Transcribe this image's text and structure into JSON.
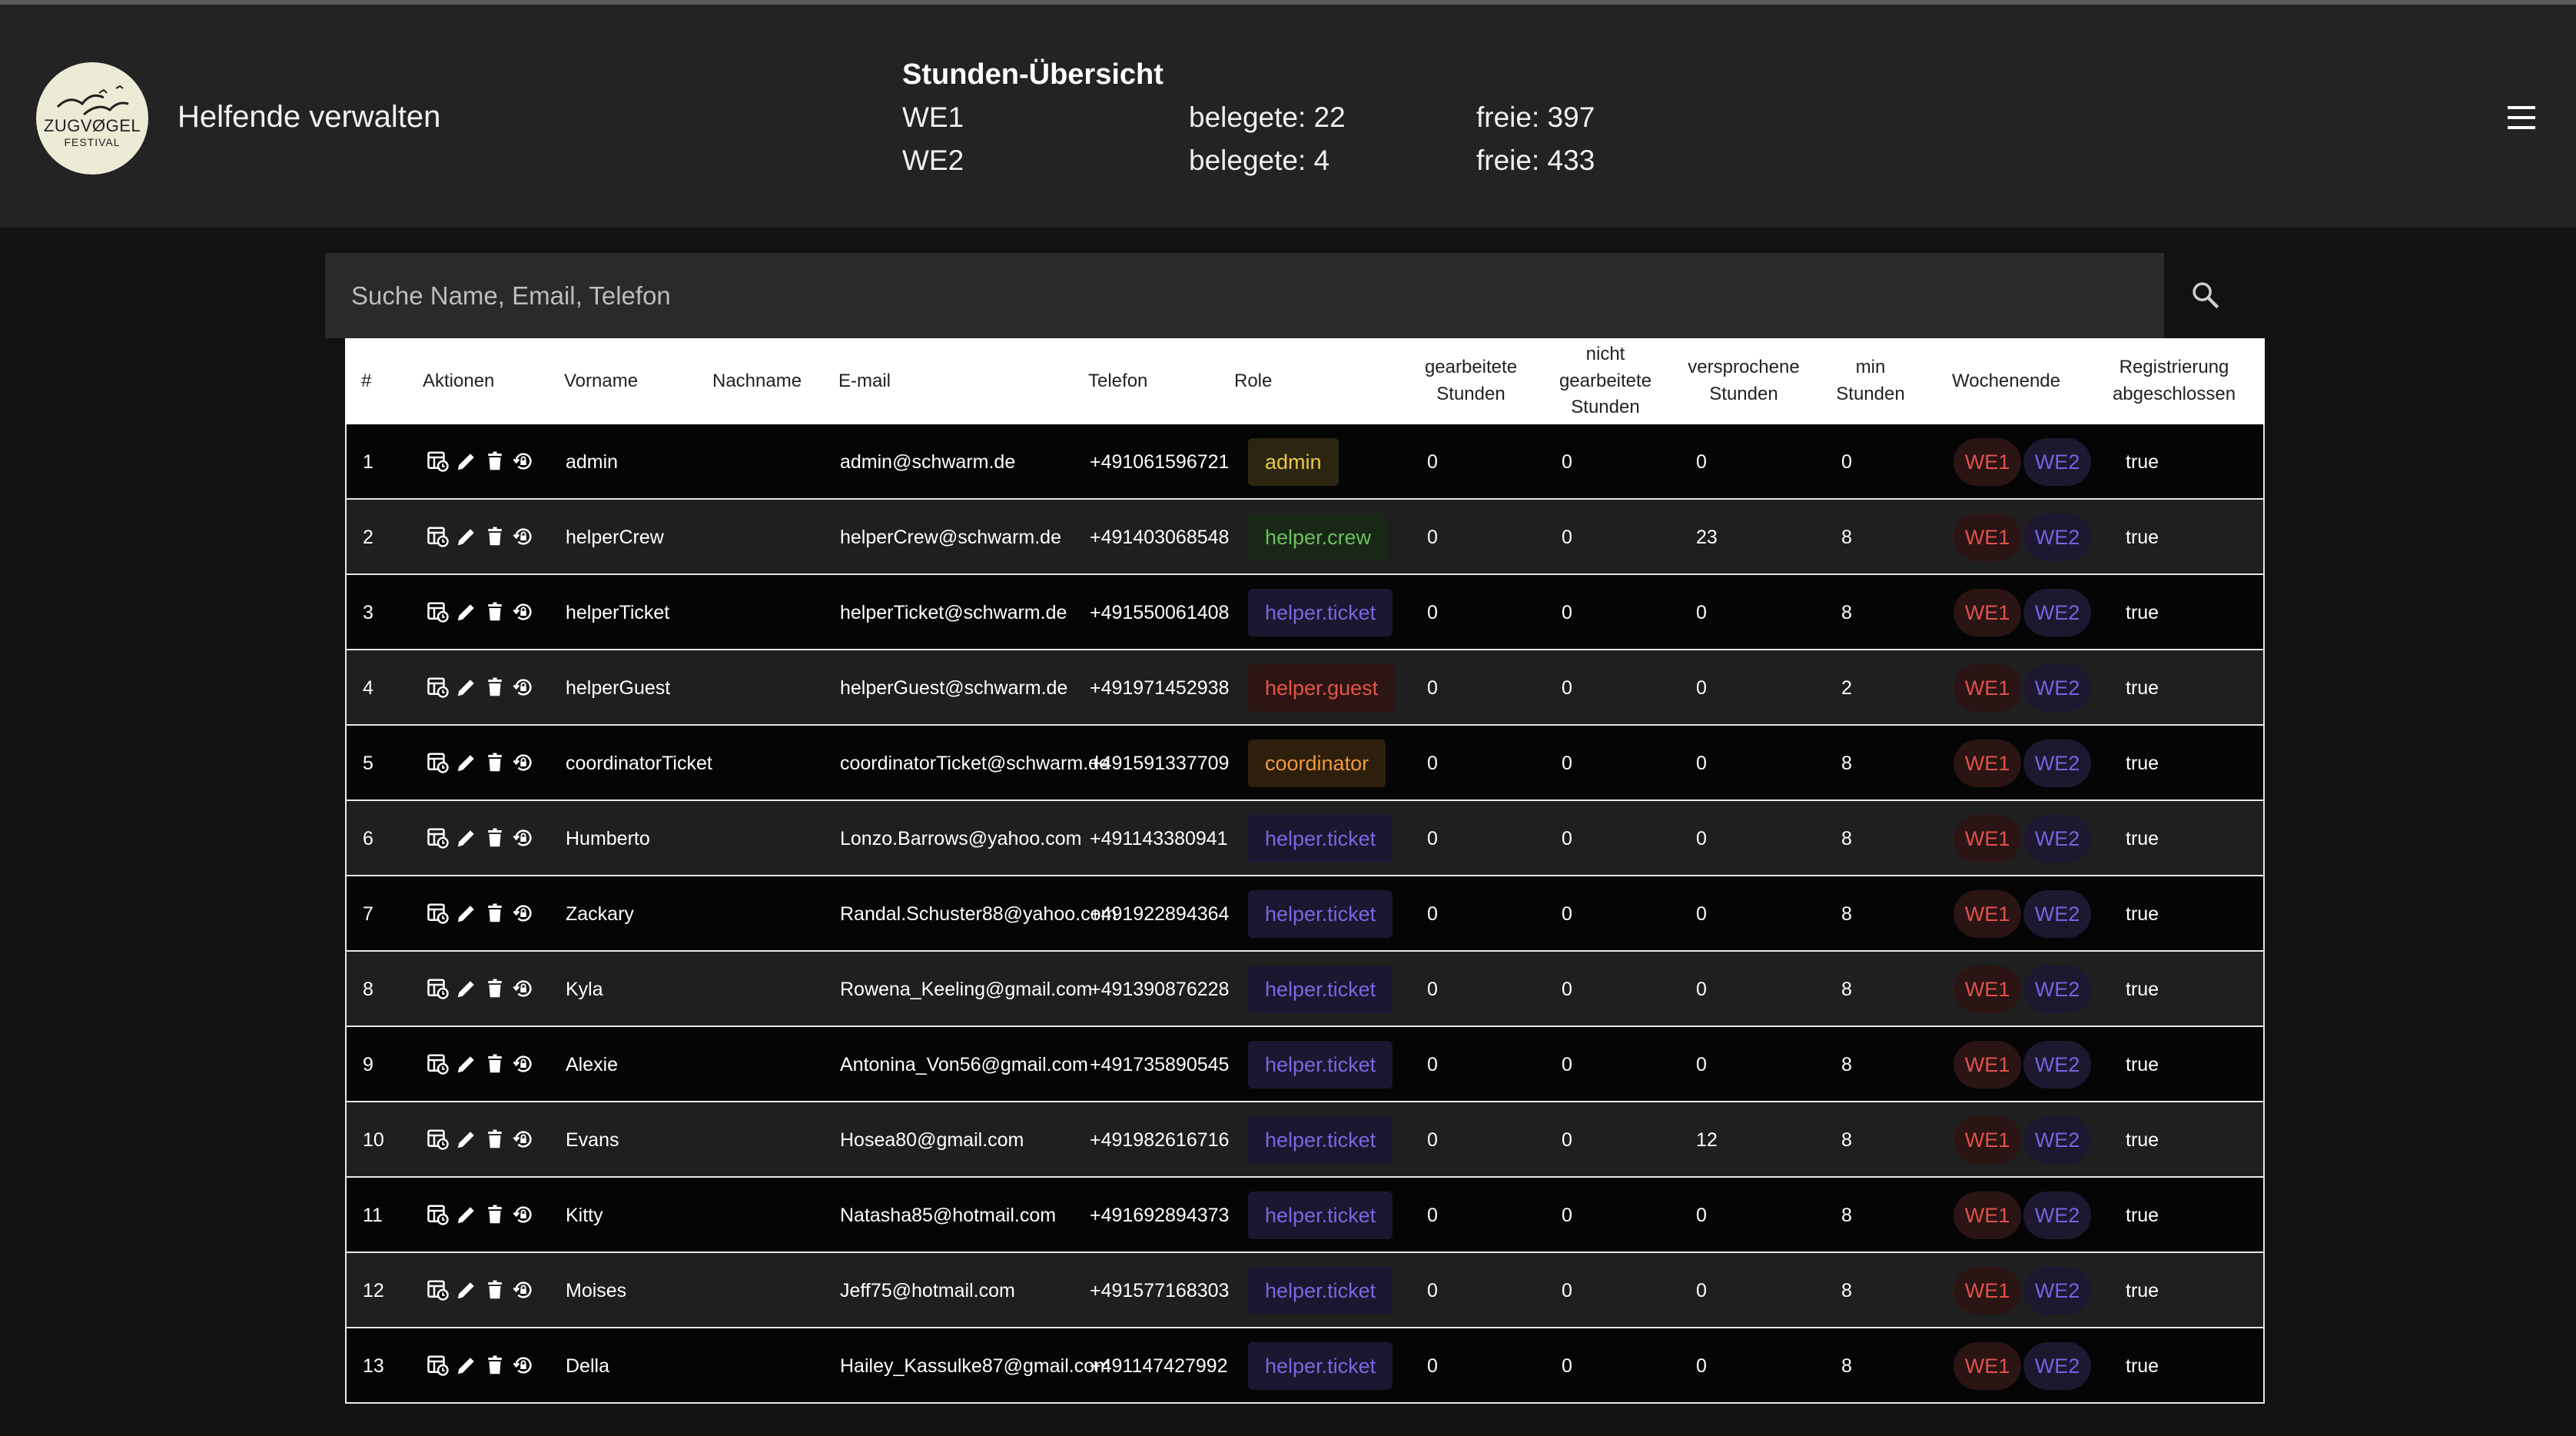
{
  "app": {
    "title": "Helfende verwalten",
    "logo_text_1": "ZUGVØGEL",
    "logo_text_2": "FESTIVAL"
  },
  "hours": {
    "title": "Stunden-Übersicht",
    "rows": [
      {
        "weekend": "WE1",
        "used": "belegete: 22",
        "free": "freie: 397"
      },
      {
        "weekend": "WE2",
        "used": "belegete: 4",
        "free": "freie: 433"
      }
    ]
  },
  "search": {
    "placeholder": "Suche Name, Email, Telefon"
  },
  "table": {
    "headers": {
      "num": "#",
      "actions": "Aktionen",
      "firstname": "Vorname",
      "lastname": "Nachname",
      "email": "E-mail",
      "phone": "Telefon",
      "role": "Role",
      "worked": [
        "gearbeitete",
        "Stunden"
      ],
      "not_worked": [
        "nicht",
        "gearbeitete",
        "Stunden"
      ],
      "promised": [
        "versprochene",
        "Stunden"
      ],
      "min": [
        "min",
        "Stunden"
      ],
      "weekend": "Wochenende",
      "registration": [
        "Registrierung",
        "abgeschlossen"
      ]
    },
    "we1_label": "WE1",
    "we2_label": "WE2",
    "rows": [
      {
        "num": "1",
        "firstname": "admin",
        "lastname": "",
        "email": "admin@schwarm.de",
        "phone": "+491061596721",
        "role": "admin",
        "worked": "0",
        "not_worked": "0",
        "promised": "0",
        "min": "0",
        "registered": "true"
      },
      {
        "num": "2",
        "firstname": "helperCrew",
        "lastname": "",
        "email": "helperCrew@schwarm.de",
        "phone": "+491403068548",
        "role": "helper.crew",
        "worked": "0",
        "not_worked": "0",
        "promised": "23",
        "min": "8",
        "registered": "true"
      },
      {
        "num": "3",
        "firstname": "helperTicket",
        "lastname": "",
        "email": "helperTicket@schwarm.de",
        "phone": "+491550061408",
        "role": "helper.ticket",
        "worked": "0",
        "not_worked": "0",
        "promised": "0",
        "min": "8",
        "registered": "true"
      },
      {
        "num": "4",
        "firstname": "helperGuest",
        "lastname": "",
        "email": "helperGuest@schwarm.de",
        "phone": "+491971452938",
        "role": "helper.guest",
        "worked": "0",
        "not_worked": "0",
        "promised": "0",
        "min": "2",
        "registered": "true"
      },
      {
        "num": "5",
        "firstname": "coordinatorTicket",
        "lastname": "",
        "email": "coordinatorTicket@schwarm.de",
        "phone": "+491591337709",
        "role": "coordinator",
        "worked": "0",
        "not_worked": "0",
        "promised": "0",
        "min": "8",
        "registered": "true"
      },
      {
        "num": "6",
        "firstname": "Humberto",
        "lastname": "",
        "email": "Lonzo.Barrows@yahoo.com",
        "phone": "+491143380941",
        "role": "helper.ticket",
        "worked": "0",
        "not_worked": "0",
        "promised": "0",
        "min": "8",
        "registered": "true"
      },
      {
        "num": "7",
        "firstname": "Zackary",
        "lastname": "",
        "email": "Randal.Schuster88@yahoo.com",
        "phone": "+491922894364",
        "role": "helper.ticket",
        "worked": "0",
        "not_worked": "0",
        "promised": "0",
        "min": "8",
        "registered": "true"
      },
      {
        "num": "8",
        "firstname": "Kyla",
        "lastname": "",
        "email": "Rowena_Keeling@gmail.com",
        "phone": "+491390876228",
        "role": "helper.ticket",
        "worked": "0",
        "not_worked": "0",
        "promised": "0",
        "min": "8",
        "registered": "true"
      },
      {
        "num": "9",
        "firstname": "Alexie",
        "lastname": "",
        "email": "Antonina_Von56@gmail.com",
        "phone": "+491735890545",
        "role": "helper.ticket",
        "worked": "0",
        "not_worked": "0",
        "promised": "0",
        "min": "8",
        "registered": "true"
      },
      {
        "num": "10",
        "firstname": "Evans",
        "lastname": "",
        "email": "Hosea80@gmail.com",
        "phone": "+491982616716",
        "role": "helper.ticket",
        "worked": "0",
        "not_worked": "0",
        "promised": "12",
        "min": "8",
        "registered": "true"
      },
      {
        "num": "11",
        "firstname": "Kitty",
        "lastname": "",
        "email": "Natasha85@hotmail.com",
        "phone": "+491692894373",
        "role": "helper.ticket",
        "worked": "0",
        "not_worked": "0",
        "promised": "0",
        "min": "8",
        "registered": "true"
      },
      {
        "num": "12",
        "firstname": "Moises",
        "lastname": "",
        "email": "Jeff75@hotmail.com",
        "phone": "+491577168303",
        "role": "helper.ticket",
        "worked": "0",
        "not_worked": "0",
        "promised": "0",
        "min": "8",
        "registered": "true"
      },
      {
        "num": "13",
        "firstname": "Della",
        "lastname": "",
        "email": "Hailey_Kassulke87@gmail.com",
        "phone": "+491147427992",
        "role": "helper.ticket",
        "worked": "0",
        "not_worked": "0",
        "promised": "0",
        "min": "8",
        "registered": "true"
      }
    ]
  },
  "role_colors": {
    "admin": {
      "bg": "#2c2611",
      "fg": "#e8c84a"
    },
    "helper.crew": {
      "bg": "#182716",
      "fg": "#6cbf5f"
    },
    "helper.ticket": {
      "bg": "#1a1730",
      "fg": "#7b66e0"
    },
    "helper.guest": {
      "bg": "#2d1513",
      "fg": "#e25547"
    },
    "coordinator": {
      "bg": "#2e1f0c",
      "fg": "#f0993a"
    }
  }
}
